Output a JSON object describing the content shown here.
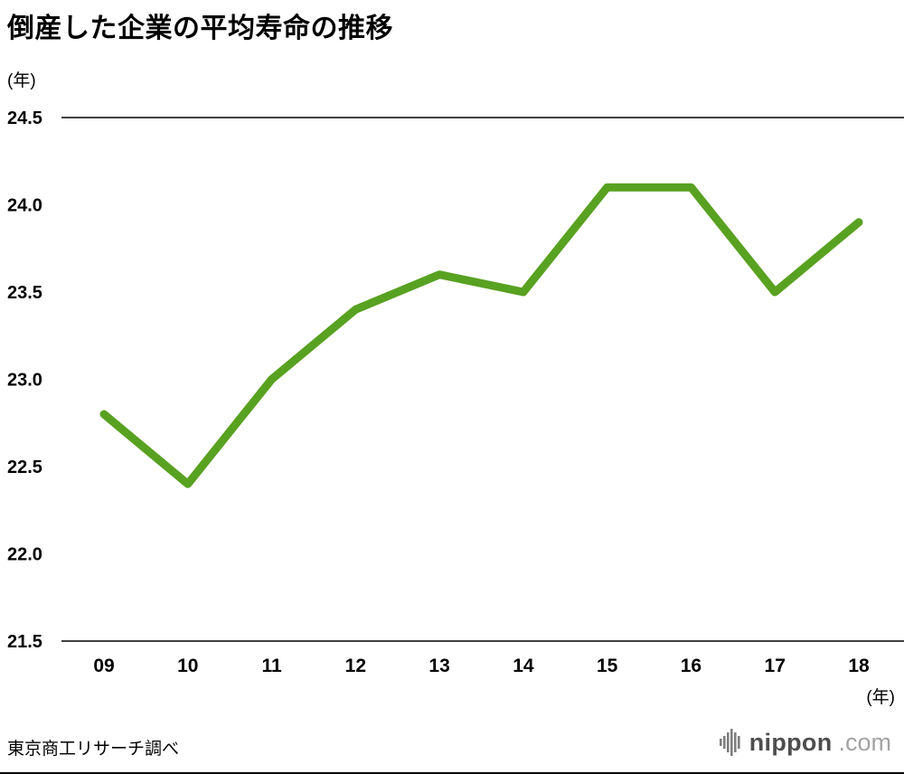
{
  "title": "倒産した企業の平均寿命の推移",
  "y_axis_unit": "(年)",
  "x_axis_unit": "(年)",
  "source": "東京商工リサーチ調べ",
  "brand": {
    "icon": "equalizer-bars-icon",
    "name": "nippon",
    "suffix": ".com"
  },
  "chart_data": {
    "type": "line",
    "title": "倒産した企業の平均寿命の推移",
    "categories": [
      "09",
      "10",
      "11",
      "12",
      "13",
      "14",
      "15",
      "16",
      "17",
      "18"
    ],
    "values": [
      22.8,
      22.4,
      23.0,
      23.4,
      23.6,
      23.5,
      24.1,
      24.1,
      23.5,
      23.9
    ],
    "xlabel": "(年)",
    "ylabel": "(年)",
    "ylim": [
      21.5,
      24.5
    ],
    "yticks": [
      21.5,
      22.0,
      22.5,
      23.0,
      23.5,
      24.0,
      24.5
    ],
    "ytick_decimals": 1,
    "line_color": "#58a121",
    "line_width": 9,
    "axis_color": "#000000",
    "grid": false,
    "legend_position": "none"
  }
}
